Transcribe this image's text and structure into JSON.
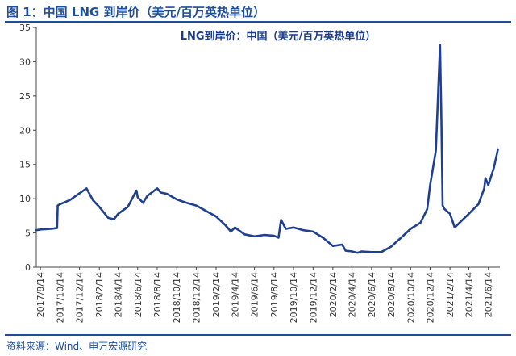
{
  "figure": {
    "title": "图 1：中国 LNG 到岸价（美元/百万英热单位）",
    "source": "资料来源：Wind、申万宏源研究"
  },
  "chart_data": {
    "type": "line",
    "title": "LNG到岸价：中国（美元/百万英热单位）",
    "xlabel": "",
    "ylabel": "",
    "ylim": [
      0,
      35
    ],
    "yticks": [
      0,
      5,
      10,
      15,
      20,
      25,
      30,
      35
    ],
    "xlim": [
      "2017-08-01",
      "2021-07-20"
    ],
    "xticks": [
      "2017/8/14",
      "2017/10/14",
      "2017/12/14",
      "2018/2/14",
      "2018/4/14",
      "2018/6/14",
      "2018/8/14",
      "2018/10/14",
      "2018/12/14",
      "2019/2/14",
      "2019/4/14",
      "2019/6/14",
      "2019/8/14",
      "2019/10/14",
      "2019/12/14",
      "2020/2/14",
      "2020/4/14",
      "2020/6/14",
      "2020/8/14",
      "2020/10/14",
      "2020/12/14",
      "2021/2/14",
      "2021/4/14",
      "2021/6/14"
    ],
    "grid": false,
    "legend": "none",
    "line_color": "#1f3f8f",
    "series": [
      {
        "x": [
          "2017-08-01",
          "2017-08-14",
          "2017-09-15",
          "2017-10-05",
          "2017-10-07",
          "2017-10-14",
          "2017-11-14",
          "2017-12-14",
          "2018-01-05",
          "2018-01-25",
          "2018-02-14",
          "2018-03-14",
          "2018-04-01",
          "2018-04-14",
          "2018-05-14",
          "2018-06-10",
          "2018-06-14",
          "2018-07-01",
          "2018-07-14",
          "2018-08-14",
          "2018-08-25",
          "2018-09-14",
          "2018-10-14",
          "2018-11-01",
          "2018-11-14",
          "2018-12-14",
          "2019-01-14",
          "2019-02-14",
          "2019-03-14",
          "2019-04-01",
          "2019-04-14",
          "2019-05-14",
          "2019-06-14",
          "2019-07-14",
          "2019-08-14",
          "2019-08-28",
          "2019-09-05",
          "2019-09-20",
          "2019-10-14",
          "2019-11-14",
          "2019-12-14",
          "2020-01-14",
          "2020-02-14",
          "2020-03-14",
          "2020-03-25",
          "2020-04-14",
          "2020-05-01",
          "2020-05-14",
          "2020-06-14",
          "2020-07-14",
          "2020-08-14",
          "2020-09-14",
          "2020-10-14",
          "2020-11-14",
          "2020-12-05",
          "2020-12-14",
          "2021-01-01",
          "2021-01-14",
          "2021-01-18",
          "2021-01-22",
          "2021-01-28",
          "2021-02-14",
          "2021-03-01",
          "2021-03-14",
          "2021-04-14",
          "2021-05-14",
          "2021-06-01",
          "2021-06-05",
          "2021-06-14",
          "2021-07-01",
          "2021-07-14"
        ],
        "y": [
          5.4,
          5.5,
          5.6,
          5.7,
          9.0,
          9.2,
          9.8,
          10.8,
          11.5,
          9.8,
          8.8,
          7.2,
          7.0,
          7.8,
          8.8,
          11.2,
          10.2,
          9.4,
          10.4,
          11.5,
          10.9,
          10.7,
          9.9,
          9.6,
          9.4,
          9.0,
          8.2,
          7.4,
          6.2,
          5.2,
          5.8,
          4.8,
          4.5,
          4.7,
          4.6,
          4.3,
          6.9,
          5.6,
          5.8,
          5.4,
          5.2,
          4.3,
          3.1,
          3.3,
          2.4,
          2.3,
          2.1,
          2.3,
          2.2,
          2.2,
          3.0,
          4.3,
          5.6,
          6.5,
          8.5,
          12.0,
          17.0,
          32.5,
          22.0,
          9.0,
          8.5,
          7.8,
          5.8,
          6.4,
          7.8,
          9.2,
          11.5,
          13.0,
          12.0,
          14.5,
          17.2
        ]
      }
    ]
  }
}
